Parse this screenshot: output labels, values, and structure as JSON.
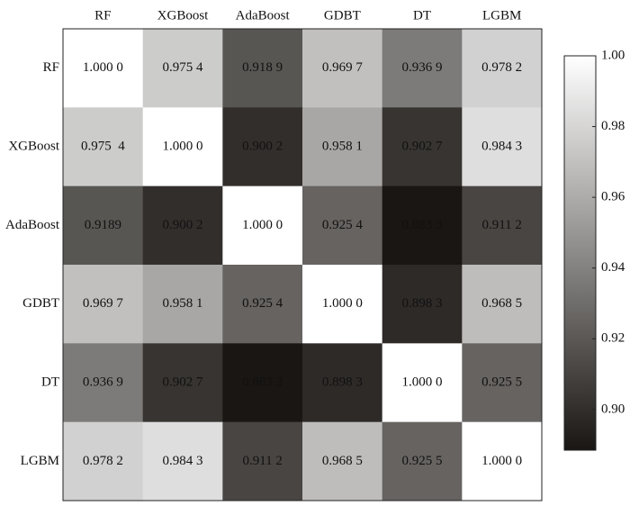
{
  "chart_data": {
    "type": "heatmap",
    "x_categories": [
      "RF",
      "XGBoost",
      "AdaBoost",
      "GDBT",
      "DT",
      "LGBM"
    ],
    "y_categories": [
      "RF",
      "XGBoost",
      "AdaBoost",
      "GDBT",
      "DT",
      "LGBM"
    ],
    "values": [
      [
        1.0,
        0.9754,
        0.9189,
        0.9697,
        0.9369,
        0.9782
      ],
      [
        0.9754,
        1.0,
        0.9002,
        0.9581,
        0.9027,
        0.9843
      ],
      [
        0.9189,
        0.9002,
        1.0,
        0.9254,
        0.8833,
        0.9112
      ],
      [
        0.9697,
        0.9581,
        0.9254,
        1.0,
        0.8983,
        0.9685
      ],
      [
        0.9369,
        0.9027,
        0.8833,
        0.8983,
        1.0,
        0.9255
      ],
      [
        0.9782,
        0.9843,
        0.9112,
        0.9685,
        0.9255,
        1.0
      ]
    ],
    "value_labels": [
      [
        "1.000 0",
        "0.975 4",
        "0.918 9",
        "0.969 7",
        "0.936 9",
        "0.978 2"
      ],
      [
        "0.975  4",
        "1.000 0",
        "0.900 2",
        "0.958 1",
        "0.902 7",
        "0.984 3"
      ],
      [
        "0.9189",
        "0.900 2",
        "1.000 0",
        "0.925 4",
        "0.883 3",
        "0.911 2"
      ],
      [
        "0.969 7",
        "0.958 1",
        "0.925 4",
        "1.000 0",
        "0.898 3",
        "0.968 5"
      ],
      [
        "0.936 9",
        "0.902 7",
        "0.883 3",
        "0.898 3",
        "1.000 0",
        "0.925 5"
      ],
      [
        "0.978 2",
        "0.984 3",
        "0.911 2",
        "0.968 5",
        "0.925 5",
        "1.000 0"
      ]
    ],
    "zlim": [
      0.8885,
      1.0
    ],
    "zticks": [
      {
        "value": 0.9,
        "label": "0.90"
      },
      {
        "value": 0.92,
        "label": "0.92"
      },
      {
        "value": 0.94,
        "label": "0.94"
      },
      {
        "value": 0.96,
        "label": "0.96"
      },
      {
        "value": 0.98,
        "label": "0.98"
      },
      {
        "value": 1.0,
        "label": "1.00"
      }
    ],
    "colormap": [
      "#1a1613",
      "#ffffff"
    ]
  }
}
